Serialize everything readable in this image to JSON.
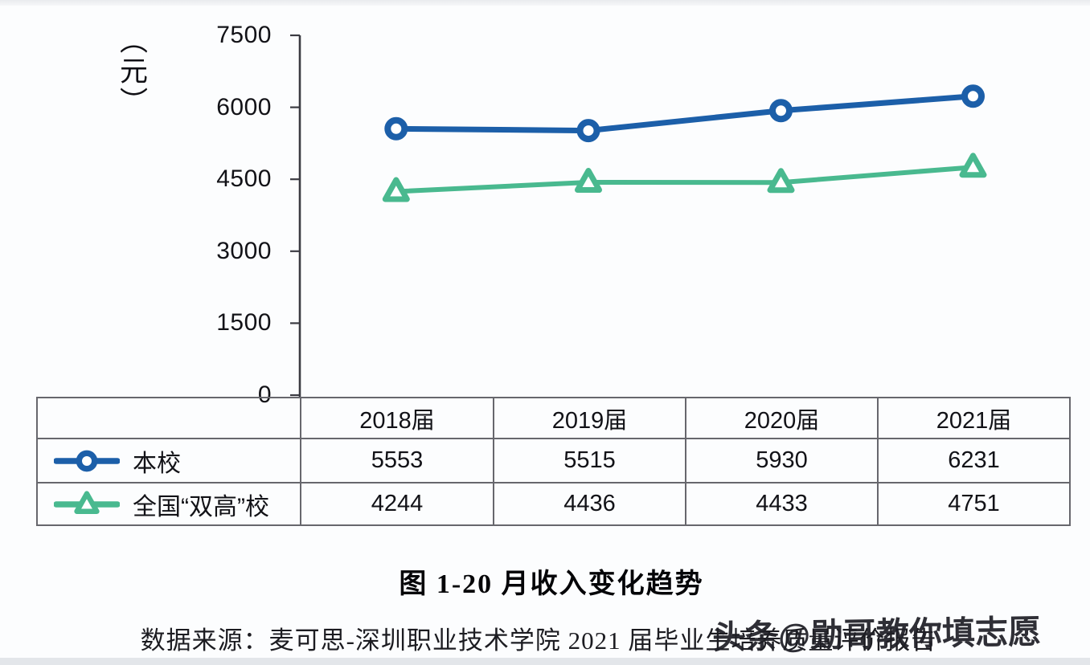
{
  "figure": {
    "unit_label": "（元）",
    "y_ticks": [
      "7500",
      "6000",
      "4500",
      "3000",
      "1500",
      "0"
    ]
  },
  "chart_data": {
    "type": "line",
    "title": "图 1-20 月收入变化趋势",
    "categories": [
      "2018届",
      "2019届",
      "2020届",
      "2021届"
    ],
    "series": [
      {
        "name": "本校",
        "marker": "circle",
        "color": "#1c5fa9",
        "values": [
          5553,
          5515,
          5930,
          6231
        ]
      },
      {
        "name": "全国“双高”校",
        "marker": "triangle",
        "color": "#49b98f",
        "values": [
          4244,
          4436,
          4433,
          4751
        ]
      }
    ],
    "ylabel": "（元）",
    "ylim": [
      0,
      7500
    ],
    "yticks": [
      0,
      1500,
      3000,
      4500,
      6000,
      7500
    ],
    "grid": false,
    "legend_position": "table rows, left of value columns"
  },
  "caption": {
    "title": "图 1-20 月收入变化趋势",
    "source": "数据来源：麦可思-深圳职业技术学院 2021 届毕业生培养质量评价报告"
  },
  "watermark": {
    "text": "头条@勋哥教你填志愿"
  },
  "colors": {
    "series_school": "#1c5fa9",
    "series_national": "#49b98f",
    "axis": "#3b3b42",
    "table_border": "#67676d"
  }
}
